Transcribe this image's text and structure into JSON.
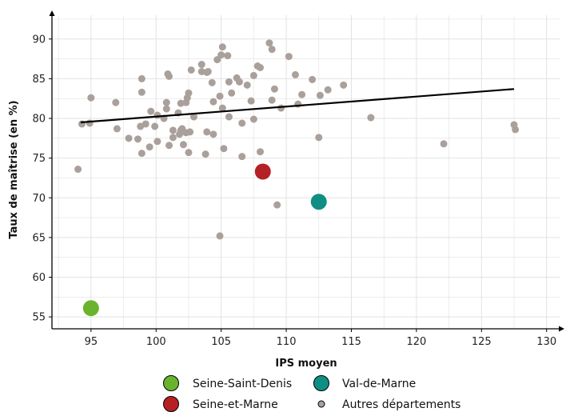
{
  "chart_data": {
    "type": "scatter",
    "title": "",
    "xlabel": "IPS moyen",
    "ylabel": "Taux de maîtrise (en %)",
    "xlim": [
      92,
      131
    ],
    "ylim": [
      53.5,
      93
    ],
    "x_ticks": [
      95,
      100,
      105,
      110,
      115,
      120,
      125,
      130
    ],
    "y_ticks": [
      55,
      60,
      65,
      70,
      75,
      80,
      85,
      90
    ],
    "grid": true,
    "legend_position": "bottom",
    "colors": {
      "others": "#aaa09b",
      "trend": "#000000",
      "grid": "#e2e2e2",
      "axis": "#000000"
    },
    "trend_line": {
      "x": [
        94.2,
        127.5
      ],
      "y": [
        79.5,
        83.7
      ]
    },
    "highlighted": [
      {
        "name": "Seine-Saint-Denis",
        "x": 95.0,
        "y": 56.1,
        "color": "#6ab42d"
      },
      {
        "name": "Seine-et-Marne",
        "x": 108.2,
        "y": 73.3,
        "color": "#b52025"
      },
      {
        "name": "Val-de-Marne",
        "x": 112.5,
        "y": 69.5,
        "color": "#0f8f84"
      }
    ],
    "others_label": "Autres départements",
    "others": [
      [
        94.0,
        73.6
      ],
      [
        94.3,
        79.3
      ],
      [
        94.9,
        79.4
      ],
      [
        95.0,
        82.6
      ],
      [
        96.9,
        82.0
      ],
      [
        97.0,
        78.7
      ],
      [
        97.9,
        77.5
      ],
      [
        98.6,
        77.4
      ],
      [
        98.8,
        79.0
      ],
      [
        98.9,
        75.6
      ],
      [
        98.9,
        83.3
      ],
      [
        98.9,
        85.0
      ],
      [
        99.2,
        79.3
      ],
      [
        99.5,
        76.4
      ],
      [
        99.6,
        80.9
      ],
      [
        99.9,
        79.0
      ],
      [
        100.1,
        80.4
      ],
      [
        100.1,
        77.1
      ],
      [
        100.6,
        80.0
      ],
      [
        100.8,
        81.2
      ],
      [
        100.8,
        82.0
      ],
      [
        100.9,
        85.6
      ],
      [
        101.0,
        85.3
      ],
      [
        101.0,
        76.6
      ],
      [
        101.3,
        77.6
      ],
      [
        101.3,
        78.5
      ],
      [
        101.7,
        80.7
      ],
      [
        101.8,
        78.0
      ],
      [
        101.9,
        78.5
      ],
      [
        101.9,
        81.9
      ],
      [
        102.0,
        78.7
      ],
      [
        102.1,
        76.7
      ],
      [
        102.3,
        78.2
      ],
      [
        102.3,
        82.0
      ],
      [
        102.4,
        82.6
      ],
      [
        102.5,
        83.2
      ],
      [
        102.5,
        75.7
      ],
      [
        102.6,
        78.3
      ],
      [
        102.7,
        86.1
      ],
      [
        102.9,
        80.2
      ],
      [
        103.5,
        85.9
      ],
      [
        103.5,
        86.8
      ],
      [
        103.8,
        75.5
      ],
      [
        103.9,
        85.8
      ],
      [
        103.9,
        78.3
      ],
      [
        104.0,
        85.9
      ],
      [
        104.3,
        84.5
      ],
      [
        104.4,
        82.1
      ],
      [
        104.4,
        78.0
      ],
      [
        104.7,
        87.4
      ],
      [
        104.9,
        82.8
      ],
      [
        104.9,
        65.2
      ],
      [
        105.0,
        88.0
      ],
      [
        105.1,
        81.3
      ],
      [
        105.1,
        89.0
      ],
      [
        105.2,
        76.2
      ],
      [
        105.5,
        87.9
      ],
      [
        105.6,
        80.2
      ],
      [
        105.6,
        84.6
      ],
      [
        105.8,
        83.2
      ],
      [
        106.2,
        85.1
      ],
      [
        106.4,
        84.6
      ],
      [
        106.6,
        75.2
      ],
      [
        106.6,
        79.4
      ],
      [
        107.0,
        84.2
      ],
      [
        107.3,
        82.2
      ],
      [
        107.5,
        85.4
      ],
      [
        107.5,
        79.9
      ],
      [
        107.8,
        86.6
      ],
      [
        108.0,
        86.4
      ],
      [
        108.0,
        75.8
      ],
      [
        108.7,
        89.5
      ],
      [
        108.9,
        88.7
      ],
      [
        108.9,
        82.3
      ],
      [
        109.1,
        83.7
      ],
      [
        109.3,
        69.1
      ],
      [
        109.6,
        81.3
      ],
      [
        110.2,
        87.8
      ],
      [
        110.7,
        85.5
      ],
      [
        110.9,
        81.8
      ],
      [
        111.2,
        83.0
      ],
      [
        112.0,
        84.9
      ],
      [
        112.5,
        77.6
      ],
      [
        112.6,
        82.9
      ],
      [
        113.2,
        83.6
      ],
      [
        114.4,
        84.2
      ],
      [
        116.5,
        80.1
      ],
      [
        122.1,
        76.8
      ],
      [
        127.5,
        79.2
      ],
      [
        127.6,
        78.6
      ]
    ]
  }
}
